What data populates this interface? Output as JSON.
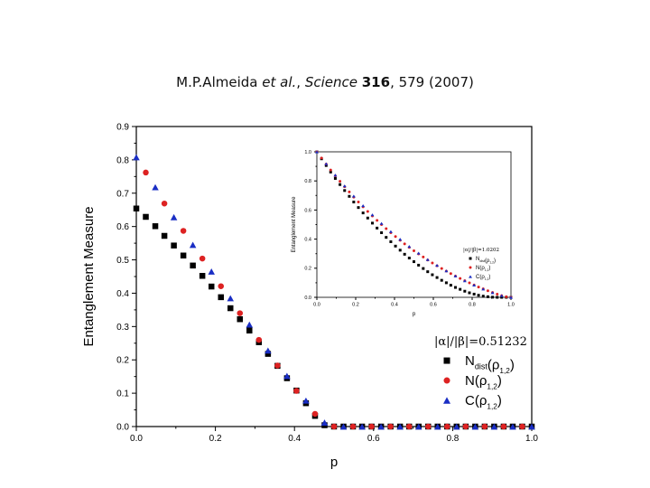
{
  "citation": {
    "authors": "M.P.Almeida",
    "et_al": "et al.",
    "journal": "Science",
    "volume": "316",
    "pages_year": ", 579 (2007)"
  },
  "chart_data": [
    {
      "type": "scatter",
      "title": "",
      "xlabel": "p",
      "ylabel": "Entanglement Measure",
      "xlim": [
        0.0,
        1.0
      ],
      "ylim": [
        0.0,
        0.9
      ],
      "xticks": [
        "0.0",
        "0.2",
        "0.4",
        "0.6",
        "0.8",
        "1.0"
      ],
      "yticks": [
        "0.0",
        "0.1",
        "0.2",
        "0.3",
        "0.4",
        "0.5",
        "0.6",
        "0.7",
        "0.8",
        "0.9"
      ],
      "legend": {
        "title": "|α|/|β|=0.51232",
        "placement": "bottom-right",
        "entries": [
          {
            "marker": "square",
            "label": "N",
            "sub": "dist",
            "rho_sub": "1,2"
          },
          {
            "marker": "circle",
            "label": "N",
            "sub": "",
            "rho_sub": "1,2"
          },
          {
            "marker": "triangle",
            "label": "C",
            "sub": "",
            "rho_sub": "1,2"
          }
        ]
      },
      "series": [
        {
          "name": "N_dist(ρ1,2)",
          "marker": "square",
          "color": "#000000",
          "x": [
            0.0,
            0.024,
            0.048,
            0.071,
            0.095,
            0.119,
            0.143,
            0.167,
            0.19,
            0.214,
            0.238,
            0.262,
            0.286,
            0.31,
            0.333,
            0.357,
            0.381,
            0.405,
            0.429,
            0.452,
            0.476,
            0.5,
            0.524,
            0.548,
            0.571,
            0.595,
            0.619,
            0.643,
            0.667,
            0.69,
            0.714,
            0.738,
            0.762,
            0.786,
            0.81,
            0.833,
            0.857,
            0.881,
            0.905,
            0.929,
            0.952,
            0.976,
            1.0
          ],
          "y": [
            0.654,
            0.629,
            0.601,
            0.572,
            0.543,
            0.513,
            0.483,
            0.452,
            0.42,
            0.388,
            0.355,
            0.322,
            0.288,
            0.253,
            0.218,
            0.182,
            0.145,
            0.108,
            0.07,
            0.032,
            0.004,
            0.0,
            0.0,
            0.0,
            0.0,
            0.0,
            0.0,
            0.0,
            0.0,
            0.0,
            0.0,
            0.0,
            0.0,
            0.0,
            0.0,
            0.0,
            0.0,
            0.0,
            0.0,
            0.0,
            0.0,
            0.0,
            0.0
          ]
        },
        {
          "name": "N(ρ1,2)",
          "marker": "circle",
          "color": "#dd2222",
          "x": [
            0.024,
            0.071,
            0.119,
            0.167,
            0.214,
            0.262,
            0.31,
            0.357,
            0.405,
            0.452,
            0.5,
            0.548,
            0.595,
            0.643,
            0.69,
            0.738,
            0.786,
            0.833,
            0.881,
            0.929,
            0.976
          ],
          "y": [
            0.762,
            0.669,
            0.587,
            0.504,
            0.421,
            0.34,
            0.26,
            0.183,
            0.107,
            0.038,
            0.0,
            0.0,
            0.0,
            0.0,
            0.0,
            0.0,
            0.0,
            0.0,
            0.0,
            0.0,
            0.0
          ]
        },
        {
          "name": "C(ρ1,2)",
          "marker": "triangle",
          "color": "#1a2ec4",
          "x": [
            0.0,
            0.048,
            0.095,
            0.143,
            0.19,
            0.238,
            0.286,
            0.333,
            0.381,
            0.429,
            0.476,
            0.524,
            0.571,
            0.619,
            0.667,
            0.714,
            0.762,
            0.81,
            0.857,
            0.905,
            0.952,
            1.0
          ],
          "y": [
            0.808,
            0.718,
            0.628,
            0.545,
            0.465,
            0.385,
            0.306,
            0.228,
            0.152,
            0.078,
            0.012,
            0.0,
            0.0,
            0.0,
            0.0,
            0.0,
            0.0,
            0.0,
            0.0,
            0.0,
            0.0,
            0.0
          ]
        }
      ]
    },
    {
      "type": "scatter",
      "title": "",
      "xlabel": "p",
      "ylabel": "Entanglement Measure",
      "xlim": [
        0.0,
        1.0
      ],
      "ylim": [
        0.0,
        1.0
      ],
      "xticks": [
        "0.0",
        "0.2",
        "0.4",
        "0.6",
        "0.8",
        "1.0"
      ],
      "yticks": [
        "0.0",
        "0.2",
        "0.4",
        "0.6",
        "0.8",
        "1.0"
      ],
      "legend": {
        "title": "|α|/|β|=1.0202",
        "placement": "right",
        "entries": [
          {
            "marker": "square",
            "label": "N",
            "sub": "dist",
            "rho_sub": "1,2"
          },
          {
            "marker": "circle",
            "label": "N",
            "sub": "",
            "rho_sub": "1,2"
          },
          {
            "marker": "triangle",
            "label": "C",
            "sub": "",
            "rho_sub": "1,2"
          }
        ]
      },
      "series": [
        {
          "name": "N_dist(ρ1,2)",
          "marker": "square",
          "color": "#000000",
          "x": [
            0.0,
            0.024,
            0.048,
            0.071,
            0.095,
            0.119,
            0.143,
            0.167,
            0.19,
            0.214,
            0.238,
            0.262,
            0.286,
            0.31,
            0.333,
            0.357,
            0.381,
            0.405,
            0.429,
            0.452,
            0.476,
            0.5,
            0.524,
            0.548,
            0.571,
            0.595,
            0.619,
            0.643,
            0.667,
            0.69,
            0.714,
            0.738,
            0.762,
            0.786,
            0.81,
            0.833,
            0.857,
            0.881,
            0.905,
            0.929,
            0.952,
            0.976,
            1.0
          ],
          "y": [
            1.0,
            0.952,
            0.906,
            0.861,
            0.817,
            0.775,
            0.734,
            0.694,
            0.655,
            0.617,
            0.58,
            0.545,
            0.51,
            0.476,
            0.444,
            0.412,
            0.382,
            0.352,
            0.324,
            0.296,
            0.27,
            0.245,
            0.221,
            0.198,
            0.176,
            0.155,
            0.136,
            0.117,
            0.1,
            0.083,
            0.068,
            0.055,
            0.042,
            0.031,
            0.022,
            0.014,
            0.008,
            0.004,
            0.001,
            0.0,
            0.0,
            0.0,
            0.0
          ]
        },
        {
          "name": "N(ρ1,2)",
          "marker": "circle",
          "color": "#dd2222",
          "x": [
            0.0,
            0.024,
            0.048,
            0.071,
            0.095,
            0.119,
            0.143,
            0.167,
            0.19,
            0.214,
            0.238,
            0.262,
            0.286,
            0.31,
            0.333,
            0.357,
            0.381,
            0.405,
            0.429,
            0.452,
            0.476,
            0.5,
            0.524,
            0.548,
            0.571,
            0.595,
            0.619,
            0.643,
            0.667,
            0.69,
            0.714,
            0.738,
            0.762,
            0.786,
            0.81,
            0.833,
            0.857,
            0.881,
            0.905,
            0.929,
            0.952,
            0.976,
            1.0
          ],
          "y": [
            1.0,
            0.957,
            0.915,
            0.875,
            0.835,
            0.797,
            0.76,
            0.724,
            0.689,
            0.655,
            0.622,
            0.59,
            0.559,
            0.529,
            0.5,
            0.472,
            0.444,
            0.418,
            0.392,
            0.367,
            0.343,
            0.32,
            0.298,
            0.277,
            0.256,
            0.236,
            0.217,
            0.198,
            0.18,
            0.163,
            0.146,
            0.13,
            0.114,
            0.099,
            0.085,
            0.071,
            0.058,
            0.045,
            0.033,
            0.022,
            0.012,
            0.004,
            0.0
          ]
        },
        {
          "name": "C(ρ1,2)",
          "marker": "triangle",
          "color": "#1a2ec4",
          "x": [
            0.0,
            0.048,
            0.095,
            0.143,
            0.19,
            0.238,
            0.286,
            0.333,
            0.381,
            0.429,
            0.476,
            0.524,
            0.571,
            0.619,
            0.667,
            0.714,
            0.762,
            0.81,
            0.857,
            0.905,
            0.952,
            1.0
          ],
          "y": [
            1.0,
            0.918,
            0.84,
            0.766,
            0.696,
            0.63,
            0.567,
            0.508,
            0.452,
            0.399,
            0.35,
            0.304,
            0.26,
            0.22,
            0.182,
            0.147,
            0.114,
            0.084,
            0.057,
            0.032,
            0.012,
            0.0
          ]
        }
      ]
    }
  ]
}
